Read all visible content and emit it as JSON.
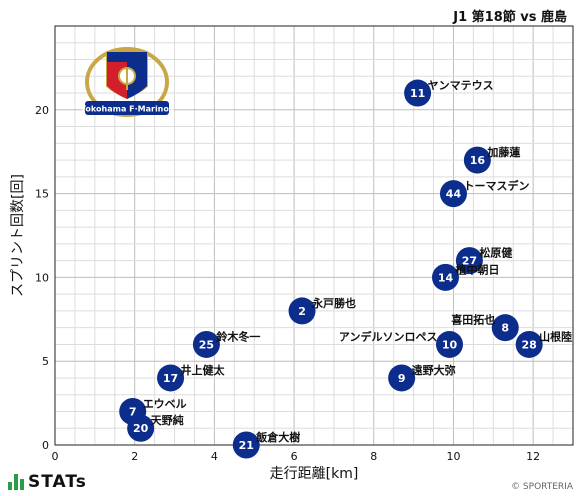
{
  "header": {
    "match_title": "J1 第18節 vs 鹿島"
  },
  "brand": {
    "stats_label": "STATs",
    "copyright": "© SPORTERIA",
    "crest_text": "Yokohama F·Marinos"
  },
  "colors": {
    "point": "#0d2d8c",
    "grid_major": "#bdbdbd",
    "grid_minor": "#dddddd",
    "stats_green": "#2a9d4a"
  },
  "chart_data": {
    "type": "scatter",
    "title": "J1 第18節 vs 鹿島",
    "xlabel": "走行距離[km]",
    "ylabel": "スプリント回数[回]",
    "xlim": [
      0,
      13
    ],
    "ylim": [
      0,
      25
    ],
    "xticks": [
      0,
      2,
      4,
      6,
      8,
      10,
      12
    ],
    "yticks": [
      0,
      5,
      10,
      15,
      20
    ],
    "grid": true,
    "points": [
      {
        "number": "11",
        "name": "ヤンマテウス",
        "x": 9.1,
        "y": 21
      },
      {
        "number": "16",
        "name": "加藤蓮",
        "x": 10.6,
        "y": 17
      },
      {
        "number": "44",
        "name": "トーマスデン",
        "x": 10.0,
        "y": 15
      },
      {
        "number": "27",
        "name": "松原健",
        "x": 10.4,
        "y": 11
      },
      {
        "number": "14",
        "name": "植中朝日",
        "x": 9.8,
        "y": 10
      },
      {
        "number": "2",
        "name": "永戸勝也",
        "x": 6.2,
        "y": 8
      },
      {
        "number": "8",
        "name": "喜田拓也",
        "x": 11.3,
        "y": 7
      },
      {
        "number": "28",
        "name": "山根陸",
        "x": 11.9,
        "y": 6
      },
      {
        "number": "10",
        "name": "アンデルソンロペス",
        "x": 9.9,
        "y": 6
      },
      {
        "number": "25",
        "name": "鈴木冬一",
        "x": 3.8,
        "y": 6
      },
      {
        "number": "9",
        "name": "遠野大弥",
        "x": 8.7,
        "y": 4
      },
      {
        "number": "17",
        "name": "井上健太",
        "x": 2.9,
        "y": 4
      },
      {
        "number": "7",
        "name": "エウベル",
        "x": 1.95,
        "y": 2
      },
      {
        "number": "20",
        "name": "天野純",
        "x": 2.15,
        "y": 1
      },
      {
        "number": "21",
        "name": "飯倉大樹",
        "x": 4.8,
        "y": 0
      }
    ]
  }
}
